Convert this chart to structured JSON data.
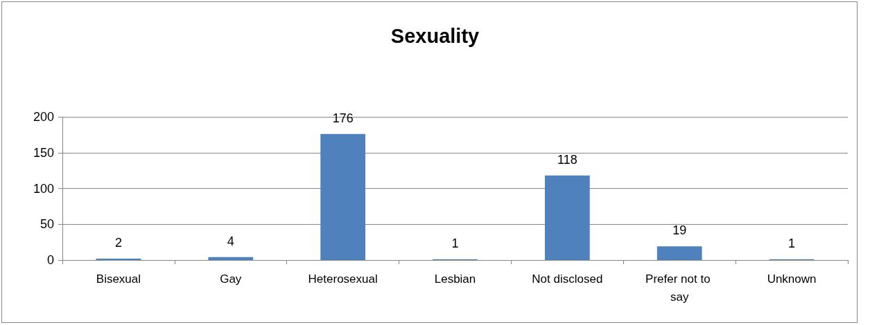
{
  "chart_data": {
    "type": "bar",
    "title": "Sexuality",
    "categories": [
      "Bisexual",
      "Gay",
      "Heterosexual",
      "Lesbian",
      "Not disclosed",
      "Prefer not to say",
      "Unknown"
    ],
    "values": [
      2,
      4,
      176,
      1,
      118,
      19,
      1
    ],
    "color": "#4f81bd",
    "ylim": [
      0,
      200
    ],
    "yticks": [
      0,
      50,
      100,
      150,
      200
    ],
    "grid": "y",
    "data_labels": true
  }
}
